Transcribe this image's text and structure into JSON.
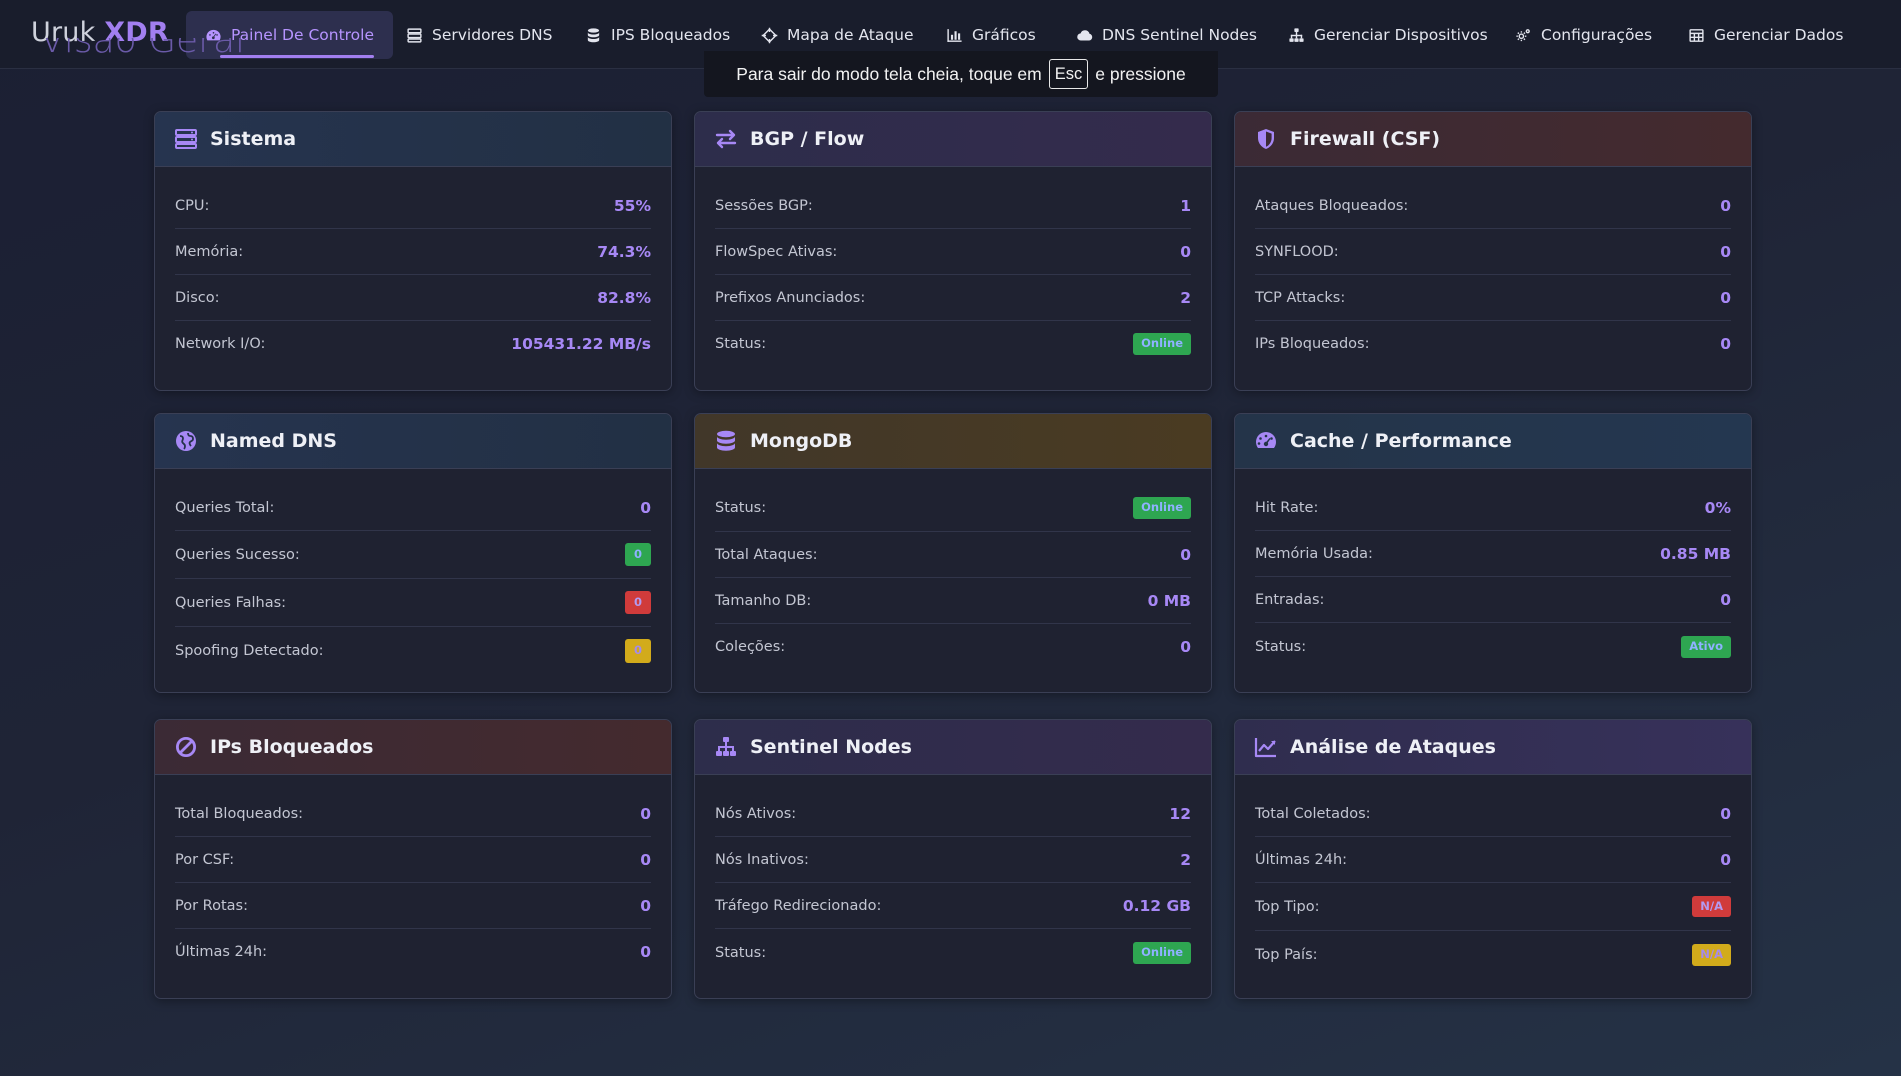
{
  "brand": {
    "prefix": "Uruk",
    "suffix": "XDR"
  },
  "nav": [
    {
      "label": "Painel De Controle",
      "icon": "gauge-icon"
    },
    {
      "label": "Servidores DNS",
      "icon": "server-icon"
    },
    {
      "label": "IPS Bloqueados",
      "icon": "database-icon"
    },
    {
      "label": "Mapa de Ataque",
      "icon": "crosshair-icon"
    },
    {
      "label": "Gráficos",
      "icon": "bar-chart-icon"
    },
    {
      "label": "DNS Sentinel Nodes",
      "icon": "cloud-icon"
    },
    {
      "label": "Gerenciar Dispositivos",
      "icon": "sitemap-icon"
    },
    {
      "label": "Configurações",
      "icon": "gears-icon"
    },
    {
      "label": "Gerenciar Dados",
      "icon": "table-icon"
    }
  ],
  "page_heading": "Visão Geral",
  "fullscreen_toast": {
    "before": "Para sair do modo tela cheia, toque em",
    "key": "Esc",
    "after": "e pressione"
  },
  "colors": {
    "accent": "#a27ff0",
    "online": "#2ea651",
    "danger": "#d03b3b",
    "warning": "#d2ab1b"
  },
  "cards": {
    "sistema": {
      "title": "Sistema",
      "rows": [
        {
          "label": "CPU:",
          "value": "55%"
        },
        {
          "label": "Memória:",
          "value": "74.3%"
        },
        {
          "label": "Disco:",
          "value": "82.8%"
        },
        {
          "label": "Network I/O:",
          "value": "105431.22 MB/s"
        }
      ]
    },
    "bgp": {
      "title": "BGP / Flow",
      "rows": [
        {
          "label": "Sessões BGP:",
          "value": "1"
        },
        {
          "label": "FlowSpec Ativas:",
          "value": "0"
        },
        {
          "label": "Prefixos Anunciados:",
          "value": "2"
        },
        {
          "label": "Status:",
          "value": "Online"
        }
      ]
    },
    "firewall": {
      "title": "Firewall (CSF)",
      "rows": [
        {
          "label": "Ataques Bloqueados:",
          "value": "0"
        },
        {
          "label": "SYNFLOOD:",
          "value": "0"
        },
        {
          "label": "TCP Attacks:",
          "value": "0"
        },
        {
          "label": "IPs Bloqueados:",
          "value": "0"
        }
      ]
    },
    "named": {
      "title": "Named DNS",
      "rows": [
        {
          "label": "Queries Total:",
          "value": "0"
        },
        {
          "label": "Queries Sucesso:",
          "value": "0"
        },
        {
          "label": "Queries Falhas:",
          "value": "0"
        },
        {
          "label": "Spoofing Detectado:",
          "value": "0"
        }
      ]
    },
    "mongo": {
      "title": "MongoDB",
      "rows": [
        {
          "label": "Status:",
          "value": "Online"
        },
        {
          "label": "Total Ataques:",
          "value": "0"
        },
        {
          "label": "Tamanho DB:",
          "value": "0 MB"
        },
        {
          "label": "Coleções:",
          "value": "0"
        }
      ]
    },
    "cache": {
      "title": "Cache / Performance",
      "rows": [
        {
          "label": "Hit Rate:",
          "value": "0%"
        },
        {
          "label": "Memória Usada:",
          "value": "0.85 MB"
        },
        {
          "label": "Entradas:",
          "value": "0"
        },
        {
          "label": "Status:",
          "value": "Ativo"
        }
      ]
    },
    "ips": {
      "title": "IPs Bloqueados",
      "rows": [
        {
          "label": "Total Bloqueados:",
          "value": "0"
        },
        {
          "label": "Por CSF:",
          "value": "0"
        },
        {
          "label": "Por Rotas:",
          "value": "0"
        },
        {
          "label": "Últimas 24h:",
          "value": "0"
        }
      ]
    },
    "sentinel": {
      "title": "Sentinel Nodes",
      "rows": [
        {
          "label": "Nós Ativos:",
          "value": "12"
        },
        {
          "label": "Nós Inativos:",
          "value": "2"
        },
        {
          "label": "Tráfego Redirecionado:",
          "value": "0.12 GB"
        },
        {
          "label": "Status:",
          "value": "Online"
        }
      ]
    },
    "analise": {
      "title": "Análise de Ataques",
      "rows": [
        {
          "label": "Total Coletados:",
          "value": "0"
        },
        {
          "label": "Últimas 24h:",
          "value": "0"
        },
        {
          "label": "Top Tipo:",
          "value": "N/A"
        },
        {
          "label": "Top País:",
          "value": "N/A"
        }
      ]
    }
  }
}
